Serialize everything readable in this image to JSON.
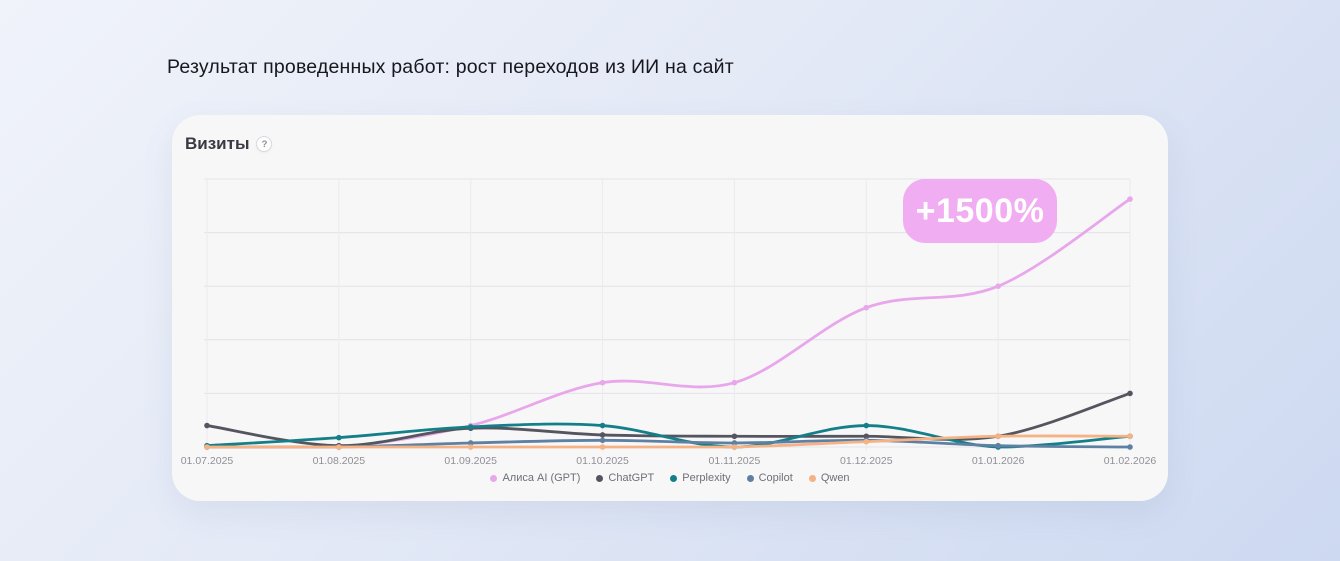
{
  "page": {
    "title": "Результат проведенных работ: рост переходов из ИИ на сайт"
  },
  "card": {
    "header": "Визиты",
    "help_icon": "?",
    "badge_label": "+1500%"
  },
  "colors": {
    "background_start": "#f0f3fa",
    "background_end": "#cdd9f1",
    "card_bg": "#f7f7f8",
    "badge_bg": "#f0adf2",
    "grid_line": "#e4e4e8",
    "tick_text": "#8f8f96"
  },
  "chart_data": {
    "type": "line",
    "title": "Визиты",
    "x_labels": [
      "01.07.2025",
      "01.08.2025",
      "01.09.2025",
      "01.10.2025",
      "01.11.2025",
      "01.12.2025",
      "01.01.2026",
      "01.02.2026"
    ],
    "xlabel": "",
    "ylabel": "",
    "ylim": [
      0,
      100
    ],
    "y_gridline_step": 20,
    "grid": true,
    "legend_position": "bottom",
    "annotation": {
      "text": "+1500%",
      "bg": "#f0adf2",
      "text_color": "#ffffff"
    },
    "series": [
      {
        "name": "Алиса AI (GPT)",
        "color": "#e9a7eb",
        "values": [
          0,
          0,
          8,
          24,
          24,
          52,
          60,
          92.5
        ]
      },
      {
        "name": "ChatGPT",
        "color": "#55555f",
        "values": [
          8,
          0.5,
          7,
          4.5,
          4,
          4,
          4,
          20
        ]
      },
      {
        "name": "Perplexity",
        "color": "#157f89",
        "values": [
          0.5,
          3.5,
          7.5,
          8,
          0,
          8,
          0,
          4
        ]
      },
      {
        "name": "Copilot",
        "color": "#5e81a3",
        "values": [
          0,
          0,
          1.5,
          2.5,
          1.5,
          2.5,
          0.5,
          0
        ]
      },
      {
        "name": "Qwen",
        "color": "#f4b285",
        "values": [
          0,
          0,
          0,
          0,
          0,
          2,
          4,
          4
        ]
      }
    ]
  }
}
